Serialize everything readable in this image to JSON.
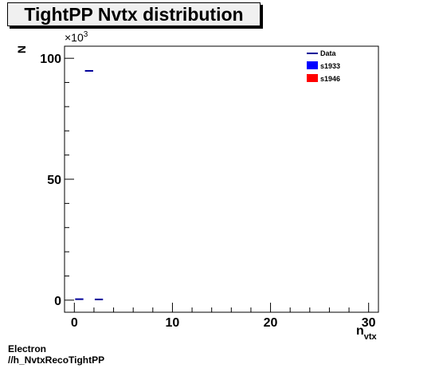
{
  "chart_data": {
    "type": "scatter",
    "title": "TightPP Nvtx distribution",
    "xlabel_main": "n",
    "xlabel_sub": "vtx",
    "ylabel": "N",
    "y_multiplier": "×10",
    "y_multiplier_exp": "3",
    "xlim": [
      -1,
      31
    ],
    "ylim": [
      -5000,
      105000
    ],
    "x_ticks": [
      0,
      10,
      20,
      30
    ],
    "x_tick_labels": [
      "0",
      "10",
      "20",
      "30"
    ],
    "y_ticks": [
      0,
      50000,
      100000
    ],
    "y_tick_labels": [
      "0",
      "50",
      "100"
    ],
    "legend_position": "top-right",
    "legend": [
      {
        "label": "Data",
        "style": "line",
        "color": "#000099"
      },
      {
        "label": "s1933",
        "style": "box",
        "color": "#0000ff"
      },
      {
        "label": "s1946",
        "style": "box",
        "color": "#ff0000"
      }
    ],
    "series": [
      {
        "name": "Data",
        "color": "#000099",
        "points": [
          {
            "x0": 0,
            "x1": 1,
            "y": 400
          },
          {
            "x0": 1,
            "x1": 2,
            "y": 94800
          },
          {
            "x0": 2,
            "x1": 3,
            "y": 300
          }
        ]
      }
    ]
  },
  "footer": {
    "line1": "Electron",
    "line2": "//h_NvtxRecoTightPP"
  }
}
